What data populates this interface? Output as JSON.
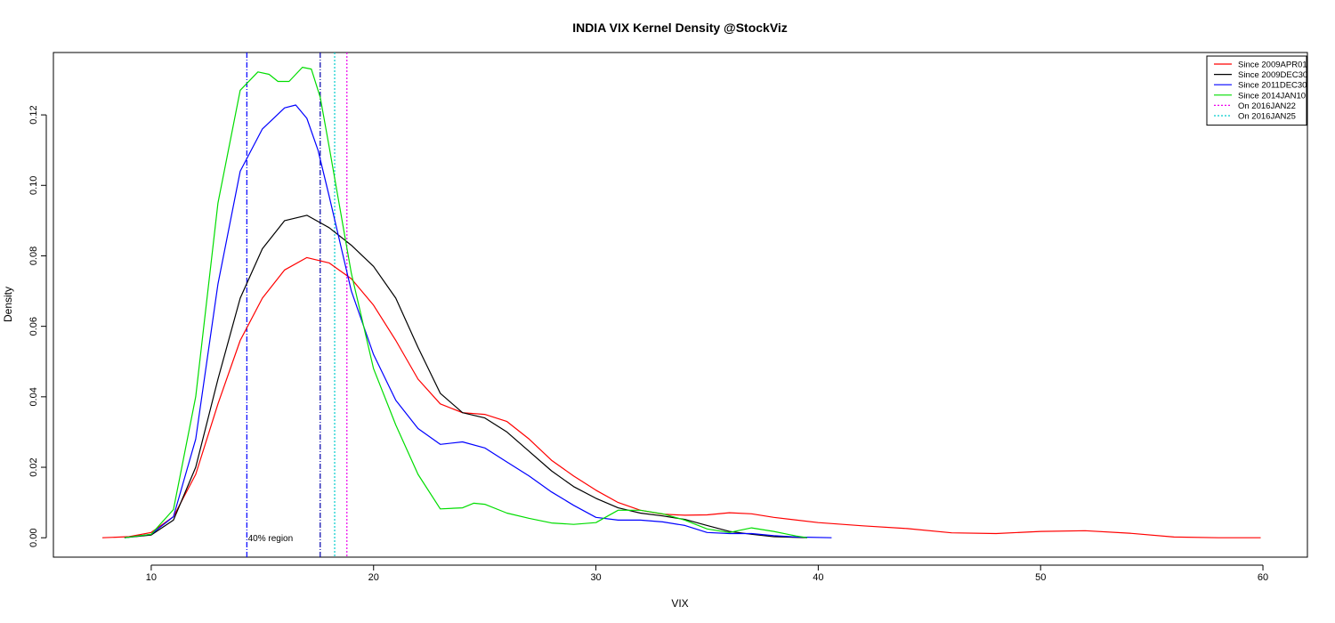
{
  "chart_data": {
    "type": "line",
    "title": "INDIA VIX Kernel Density @StockViz",
    "xlabel": "VIX",
    "ylabel": "Density",
    "xlim": [
      5.6,
      62.0
    ],
    "ylim": [
      -0.0055,
      0.1377
    ],
    "x_ticks": [
      10,
      20,
      30,
      40,
      50,
      60
    ],
    "y_ticks": [
      0.0,
      0.02,
      0.04,
      0.06,
      0.08,
      0.1,
      0.12
    ],
    "y_tick_labels": [
      "0.00",
      "0.02",
      "0.04",
      "0.06",
      "0.08",
      "0.10",
      "0.12"
    ],
    "grid": false,
    "legend_position": "top-right",
    "series": [
      {
        "name": "Since 2009APR01",
        "color": "#ff0000",
        "style": "solid",
        "points": [
          [
            7.8,
            0.0
          ],
          [
            9,
            0.0003
          ],
          [
            10,
            0.0015
          ],
          [
            11,
            0.006
          ],
          [
            12,
            0.018
          ],
          [
            13,
            0.038
          ],
          [
            14,
            0.056
          ],
          [
            15,
            0.068
          ],
          [
            16,
            0.076
          ],
          [
            17,
            0.0795
          ],
          [
            18,
            0.078
          ],
          [
            19,
            0.0735
          ],
          [
            20,
            0.066
          ],
          [
            21,
            0.056
          ],
          [
            22,
            0.045
          ],
          [
            23,
            0.038
          ],
          [
            24,
            0.0355
          ],
          [
            25,
            0.035
          ],
          [
            26,
            0.033
          ],
          [
            27,
            0.028
          ],
          [
            28,
            0.022
          ],
          [
            29,
            0.0175
          ],
          [
            30,
            0.0135
          ],
          [
            31,
            0.01
          ],
          [
            32,
            0.0078
          ],
          [
            33,
            0.0067
          ],
          [
            34,
            0.0064
          ],
          [
            35,
            0.0065
          ],
          [
            36,
            0.0071
          ],
          [
            37,
            0.0068
          ],
          [
            38,
            0.0058
          ],
          [
            40,
            0.0043
          ],
          [
            42,
            0.0034
          ],
          [
            44,
            0.0026
          ],
          [
            46,
            0.0014
          ],
          [
            48,
            0.0012
          ],
          [
            50,
            0.0018
          ],
          [
            52,
            0.002
          ],
          [
            54,
            0.0013
          ],
          [
            56,
            0.0002
          ],
          [
            58,
            0.0
          ],
          [
            59.9,
            0.0
          ]
        ]
      },
      {
        "name": "Since 2009DEC30",
        "color": "#000000",
        "style": "solid",
        "points": [
          [
            8.8,
            0.0
          ],
          [
            10,
            0.0008
          ],
          [
            11,
            0.005
          ],
          [
            12,
            0.02
          ],
          [
            13,
            0.045
          ],
          [
            14,
            0.068
          ],
          [
            15,
            0.082
          ],
          [
            16,
            0.09
          ],
          [
            17,
            0.0915
          ],
          [
            18,
            0.088
          ],
          [
            19,
            0.083
          ],
          [
            20,
            0.077
          ],
          [
            21,
            0.068
          ],
          [
            22,
            0.054
          ],
          [
            23,
            0.041
          ],
          [
            24,
            0.0355
          ],
          [
            25,
            0.034
          ],
          [
            26,
            0.03
          ],
          [
            27,
            0.0245
          ],
          [
            28,
            0.019
          ],
          [
            29,
            0.0145
          ],
          [
            30,
            0.0112
          ],
          [
            31,
            0.0085
          ],
          [
            32,
            0.007
          ],
          [
            33,
            0.0062
          ],
          [
            34,
            0.0052
          ],
          [
            35,
            0.0035
          ],
          [
            36,
            0.0018
          ],
          [
            37,
            0.001
          ],
          [
            38,
            0.0003
          ],
          [
            39.5,
            0.0
          ]
        ]
      },
      {
        "name": "Since 2011DEC30",
        "color": "#0000ff",
        "style": "solid",
        "points": [
          [
            8.8,
            0.0
          ],
          [
            10,
            0.001
          ],
          [
            11,
            0.006
          ],
          [
            12,
            0.028
          ],
          [
            13,
            0.072
          ],
          [
            14,
            0.104
          ],
          [
            15,
            0.116
          ],
          [
            16,
            0.122
          ],
          [
            16.5,
            0.1228
          ],
          [
            17,
            0.119
          ],
          [
            17.5,
            0.11
          ],
          [
            18,
            0.097
          ],
          [
            19,
            0.07
          ],
          [
            20,
            0.052
          ],
          [
            21,
            0.039
          ],
          [
            22,
            0.031
          ],
          [
            23,
            0.0265
          ],
          [
            24,
            0.0272
          ],
          [
            25,
            0.0255
          ],
          [
            26,
            0.0215
          ],
          [
            27,
            0.0175
          ],
          [
            28,
            0.013
          ],
          [
            29,
            0.0092
          ],
          [
            30,
            0.0058
          ],
          [
            31,
            0.005
          ],
          [
            32,
            0.005
          ],
          [
            33,
            0.0045
          ],
          [
            34,
            0.0035
          ],
          [
            35,
            0.0015
          ],
          [
            36,
            0.0012
          ],
          [
            37,
            0.0012
          ],
          [
            38,
            0.0006
          ],
          [
            39,
            0.0002
          ],
          [
            40.6,
            0.0
          ]
        ]
      },
      {
        "name": "Since 2014JAN10",
        "color": "#00dd00",
        "style": "solid",
        "points": [
          [
            8.8,
            0.0
          ],
          [
            10,
            0.001
          ],
          [
            11,
            0.008
          ],
          [
            12,
            0.04
          ],
          [
            13,
            0.095
          ],
          [
            14,
            0.127
          ],
          [
            14.8,
            0.1322
          ],
          [
            15.3,
            0.1315
          ],
          [
            15.7,
            0.1295
          ],
          [
            16.2,
            0.1295
          ],
          [
            16.8,
            0.1335
          ],
          [
            17.2,
            0.133
          ],
          [
            17.6,
            0.125
          ],
          [
            18,
            0.111
          ],
          [
            19,
            0.075
          ],
          [
            20,
            0.048
          ],
          [
            21,
            0.032
          ],
          [
            22,
            0.018
          ],
          [
            23,
            0.0082
          ],
          [
            24,
            0.0085
          ],
          [
            24.5,
            0.0098
          ],
          [
            25,
            0.0095
          ],
          [
            26,
            0.007
          ],
          [
            27,
            0.0055
          ],
          [
            28,
            0.0042
          ],
          [
            29,
            0.0038
          ],
          [
            30,
            0.0043
          ],
          [
            31,
            0.0078
          ],
          [
            32,
            0.0078
          ],
          [
            33,
            0.0068
          ],
          [
            34,
            0.005
          ],
          [
            35,
            0.0025
          ],
          [
            36,
            0.0015
          ],
          [
            37,
            0.0028
          ],
          [
            38,
            0.0018
          ],
          [
            39,
            0.0005
          ],
          [
            39.5,
            0.0
          ]
        ]
      }
    ],
    "vlines": [
      {
        "name": "On 2016JAN22",
        "x": 18.8,
        "color": "#ee00ee",
        "style": "dotted",
        "in_legend": true
      },
      {
        "name": "On 2016JAN25",
        "x": 18.25,
        "color": "#00cccc",
        "style": "dotted",
        "in_legend": true
      },
      {
        "name": "",
        "x": 14.3,
        "color": "#0000ff",
        "style": "dashdot",
        "in_legend": false
      },
      {
        "name": "",
        "x": 17.6,
        "color": "#0000aa",
        "style": "dashdot",
        "in_legend": false
      }
    ],
    "annotations": [
      {
        "text": "40% region",
        "x": 14.35,
        "y": 0.0
      }
    ]
  }
}
